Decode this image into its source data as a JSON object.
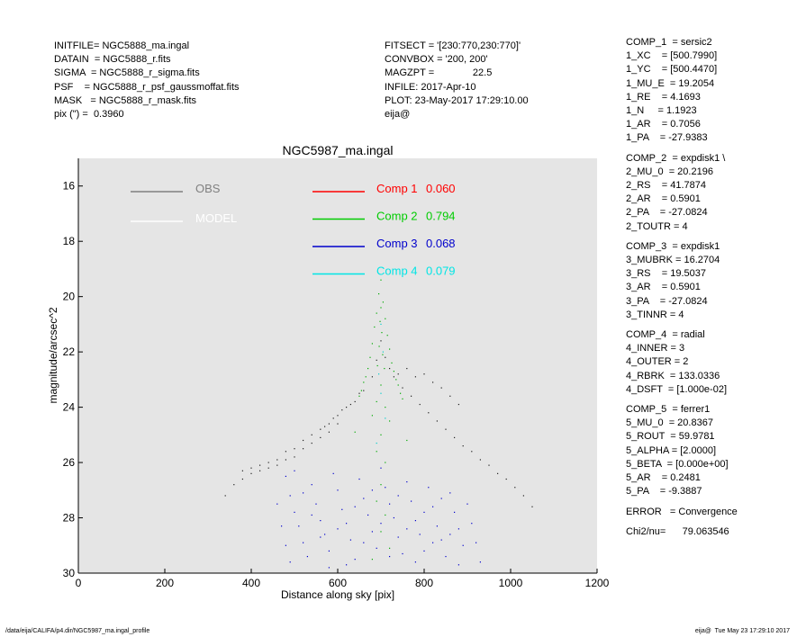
{
  "header_left": [
    "INITFILE= NGC5888_ma.ingal",
    "DATAIN  = NGC5888_r.fits",
    "SIGMA  = NGC5888_r_sigma.fits",
    "PSF    = NGC5888_r_psf_gaussmoffat.fits",
    "MASK   = NGC5888_r_mask.fits",
    "pix (\") =  0.3960"
  ],
  "header_mid": [
    "FITSECT = '[230:770,230:770]'",
    "CONVBOX = '200, 200'",
    "MAGZPT =              22.5",
    "INFILE: 2017-Apr-10",
    "PLOT: 23-May-2017 17:29:10.00",
    "eija@"
  ],
  "right_groups": [
    [
      "COMP_1  = sersic2",
      "1_XC    = [500.7990]",
      "1_YC    = [500.4470]",
      "1_MU_E  = 19.2054",
      "1_RE    = 4.1693",
      "1_N     = 1.1923",
      "1_AR    = 0.7056",
      "1_PA    = -27.9383"
    ],
    [
      "COMP_2  = expdisk1 \\",
      "2_MU_0  = 20.2196",
      "2_RS    = 41.7874",
      "2_AR    = 0.5901",
      "2_PA    = -27.0824",
      "2_TOUTR = 4"
    ],
    [
      "COMP_3  = expdisk1",
      "3_MUBRK = 16.2704",
      "3_RS    = 19.5037",
      "3_AR    = 0.5901",
      "3_PA    = -27.0824",
      "3_TINNR = 4"
    ],
    [
      "COMP_4  = radial",
      "4_INNER = 3",
      "4_OUTER = 2",
      "4_RBRK  = 133.0336",
      "4_DSFT  = [1.000e-02]"
    ],
    [
      "COMP_5  = ferrer1",
      "5_MU_0  = 20.8367",
      "5_ROUT  = 59.9781",
      "5_ALPHA = [2.0000]",
      "5_BETA  = [0.000e+00]",
      "5_AR    = 0.2481",
      "5_PA    = -9.3887"
    ],
    [
      "ERROR   = Convergence"
    ],
    [
      "Chi2/nu=      79.063546"
    ]
  ],
  "footer_left": "/data/eija/CALIFA/p4.dir/NGC5987_ma.ingal_profile",
  "footer_right": "eija@  Tue May 23 17:29:10 2017",
  "chart_data": {
    "type": "scatter",
    "title": "NGC5987_ma.ingal",
    "xlabel": "Distance along sky [pix]",
    "ylabel": "magnitude/arcsec^2",
    "xlim": [
      0,
      1200
    ],
    "ylim": [
      30,
      15
    ],
    "y_inverted": true,
    "x_ticks": [
      0,
      200,
      400,
      600,
      800,
      1000,
      1200
    ],
    "y_ticks": [
      16,
      18,
      20,
      22,
      24,
      26,
      28,
      30
    ],
    "plot_background": "#e5e5e5",
    "grid": false,
    "legend": [
      {
        "label": "OBS",
        "value": "",
        "color": "#808080"
      },
      {
        "label": "MODEL",
        "value": "",
        "color": "#ffffff"
      },
      {
        "label": "Comp 1",
        "value": "0.060",
        "color": "#ff0000"
      },
      {
        "label": "Comp 2",
        "value": "0.794",
        "color": "#00cc00"
      },
      {
        "label": "Comp 3",
        "value": "0.068",
        "color": "#0000cc"
      },
      {
        "label": "Comp 4",
        "value": "0.079",
        "color": "#00e5e5"
      }
    ],
    "series": [
      {
        "color": "#202020",
        "points": [
          [
            700,
            21.6
          ],
          [
            690,
            22.3
          ],
          [
            720,
            22.6
          ],
          [
            740,
            22.8
          ],
          [
            760,
            22.6
          ],
          [
            780,
            22.9
          ],
          [
            800,
            22.8
          ],
          [
            820,
            23.1
          ],
          [
            840,
            23.3
          ],
          [
            860,
            23.6
          ],
          [
            880,
            23.9
          ],
          [
            650,
            23.5
          ],
          [
            630,
            23.9
          ],
          [
            600,
            24.3
          ],
          [
            580,
            24.6
          ],
          [
            560,
            25.1
          ],
          [
            540,
            25.3
          ],
          [
            520,
            25.5
          ],
          [
            500,
            25.8
          ],
          [
            480,
            25.9
          ],
          [
            460,
            26.1
          ],
          [
            440,
            26.2
          ],
          [
            420,
            26.3
          ],
          [
            400,
            26.4
          ],
          [
            380,
            26.6
          ],
          [
            360,
            26.8
          ],
          [
            340,
            27.2
          ],
          [
            620,
            24.0
          ],
          [
            640,
            23.8
          ],
          [
            660,
            23.4
          ],
          [
            680,
            22.9
          ],
          [
            710,
            22.2
          ],
          [
            730,
            22.9
          ],
          [
            750,
            23.3
          ],
          [
            770,
            23.6
          ],
          [
            790,
            23.9
          ],
          [
            810,
            24.2
          ],
          [
            830,
            24.5
          ],
          [
            850,
            24.8
          ],
          [
            870,
            25.1
          ],
          [
            890,
            25.4
          ],
          [
            910,
            25.6
          ],
          [
            930,
            25.9
          ],
          [
            950,
            26.1
          ],
          [
            970,
            26.4
          ],
          [
            990,
            26.6
          ],
          [
            1010,
            26.9
          ],
          [
            1030,
            27.2
          ],
          [
            1050,
            27.6
          ],
          [
            560,
            24.8
          ],
          [
            540,
            25.0
          ],
          [
            520,
            25.2
          ],
          [
            500,
            25.5
          ],
          [
            480,
            25.6
          ],
          [
            460,
            25.9
          ],
          [
            440,
            26.0
          ],
          [
            420,
            26.1
          ],
          [
            400,
            26.2
          ],
          [
            380,
            26.3
          ],
          [
            600,
            24.6
          ],
          [
            580,
            24.9
          ],
          [
            610,
            24.1
          ],
          [
            590,
            24.4
          ],
          [
            570,
            24.7
          ]
        ]
      },
      {
        "color": "#0000cc",
        "points": [
          [
            480,
            26.5
          ],
          [
            490,
            27.2
          ],
          [
            500,
            27.8
          ],
          [
            510,
            28.3
          ],
          [
            520,
            28.9
          ],
          [
            530,
            29.4
          ],
          [
            540,
            26.8
          ],
          [
            550,
            27.5
          ],
          [
            560,
            28.1
          ],
          [
            570,
            28.6
          ],
          [
            580,
            29.2
          ],
          [
            590,
            26.4
          ],
          [
            600,
            27.0
          ],
          [
            610,
            27.7
          ],
          [
            620,
            28.2
          ],
          [
            630,
            28.8
          ],
          [
            640,
            29.5
          ],
          [
            650,
            26.6
          ],
          [
            660,
            27.3
          ],
          [
            670,
            27.9
          ],
          [
            680,
            28.5
          ],
          [
            690,
            29.1
          ],
          [
            700,
            26.2
          ],
          [
            710,
            26.9
          ],
          [
            720,
            27.5
          ],
          [
            730,
            28.0
          ],
          [
            740,
            28.7
          ],
          [
            750,
            29.3
          ],
          [
            760,
            26.7
          ],
          [
            770,
            27.4
          ],
          [
            780,
            28.1
          ],
          [
            790,
            28.6
          ],
          [
            800,
            29.2
          ],
          [
            810,
            26.9
          ],
          [
            820,
            27.6
          ],
          [
            830,
            28.3
          ],
          [
            840,
            28.8
          ],
          [
            850,
            29.4
          ],
          [
            860,
            27.1
          ],
          [
            870,
            27.8
          ],
          [
            880,
            28.4
          ],
          [
            890,
            29.0
          ],
          [
            900,
            27.5
          ],
          [
            910,
            28.2
          ],
          [
            920,
            28.9
          ],
          [
            930,
            29.6
          ],
          [
            460,
            27.5
          ],
          [
            470,
            28.3
          ],
          [
            480,
            29.0
          ],
          [
            490,
            29.6
          ],
          [
            500,
            26.3
          ],
          [
            520,
            27.1
          ],
          [
            540,
            27.9
          ],
          [
            560,
            28.7
          ],
          [
            580,
            29.8
          ],
          [
            600,
            28.4
          ],
          [
            620,
            29.7
          ],
          [
            640,
            27.6
          ],
          [
            660,
            28.9
          ],
          [
            680,
            27.0
          ],
          [
            700,
            28.2
          ],
          [
            720,
            29.4
          ],
          [
            740,
            27.2
          ],
          [
            760,
            28.4
          ],
          [
            780,
            29.6
          ],
          [
            800,
            27.8
          ],
          [
            820,
            28.9
          ],
          [
            840,
            27.3
          ],
          [
            860,
            28.6
          ],
          [
            880,
            29.7
          ]
        ]
      },
      {
        "color": "#00aa00",
        "points": [
          [
            700,
            19.4
          ],
          [
            695,
            19.9
          ],
          [
            705,
            20.2
          ],
          [
            690,
            20.6
          ],
          [
            710,
            20.8
          ],
          [
            685,
            21.1
          ],
          [
            715,
            21.4
          ],
          [
            680,
            21.7
          ],
          [
            720,
            21.9
          ],
          [
            675,
            22.2
          ],
          [
            725,
            22.4
          ],
          [
            670,
            22.6
          ],
          [
            730,
            22.7
          ],
          [
            665,
            22.9
          ],
          [
            735,
            23.0
          ],
          [
            660,
            23.1
          ],
          [
            740,
            23.2
          ],
          [
            655,
            23.4
          ],
          [
            745,
            23.5
          ],
          [
            650,
            23.6
          ],
          [
            750,
            23.7
          ],
          [
            700,
            20.4
          ],
          [
            698,
            20.9
          ],
          [
            702,
            21.3
          ],
          [
            696,
            21.8
          ],
          [
            704,
            22.1
          ],
          [
            692,
            22.5
          ],
          [
            708,
            22.6
          ],
          [
            700,
            23.2
          ],
          [
            690,
            23.8
          ],
          [
            710,
            24.0
          ],
          [
            680,
            24.3
          ],
          [
            720,
            24.5
          ],
          [
            700,
            25.0
          ],
          [
            690,
            25.6
          ],
          [
            710,
            26.0
          ],
          [
            700,
            26.8
          ],
          [
            690,
            27.4
          ],
          [
            710,
            27.9
          ],
          [
            700,
            28.5
          ],
          [
            720,
            29.1
          ],
          [
            680,
            29.5
          ],
          [
            640,
            24.9
          ],
          [
            760,
            25.2
          ]
        ]
      },
      {
        "color": "#00cccc",
        "points": [
          [
            700,
            21.0
          ],
          [
            705,
            22.0
          ],
          [
            695,
            22.8
          ],
          [
            700,
            23.5
          ],
          [
            710,
            24.4
          ],
          [
            690,
            25.3
          ]
        ]
      }
    ]
  }
}
